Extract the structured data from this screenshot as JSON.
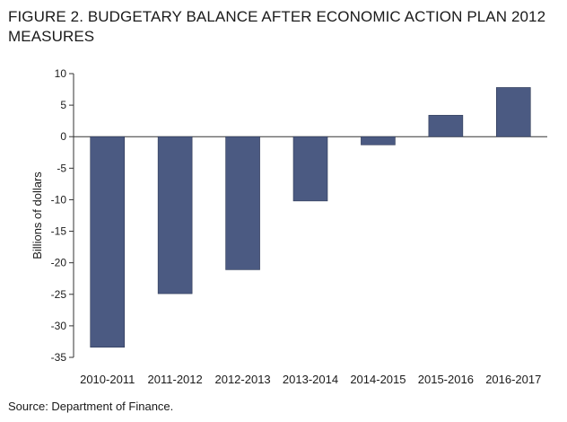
{
  "figure": {
    "title": "FIGURE 2. BUDGETARY BALANCE AFTER ECONOMIC ACTION PLAN 2012 MEASURES",
    "source": "Source: Department of Finance."
  },
  "colors": {
    "bar": "#4b5a82",
    "axis": "#333333",
    "text": "#1a1a1a"
  },
  "chart_data": {
    "type": "bar",
    "categories": [
      "2010-2011",
      "2011-2012",
      "2012-2013",
      "2013-2014",
      "2014-2015",
      "2015-2016",
      "2016-2017"
    ],
    "values": [
      -33.4,
      -24.9,
      -21.1,
      -10.2,
      -1.3,
      3.4,
      7.8
    ],
    "ylabel": "Billions of dollars",
    "ylim": [
      -35,
      10
    ],
    "yticks": [
      10,
      5,
      0,
      -5,
      -10,
      -15,
      -20,
      -25,
      -30,
      -35
    ],
    "grid": false,
    "legend": "none"
  }
}
